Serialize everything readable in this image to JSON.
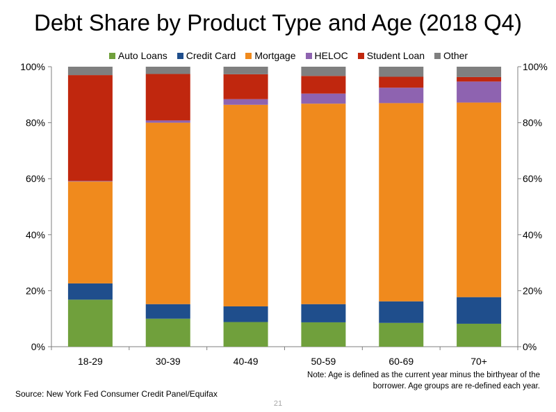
{
  "page_number": "21",
  "source": "Source: New York Fed Consumer Credit Panel/Equifax",
  "note": "Note: Age is defined as the current year minus the birthyear of the borrower. Age groups are re-defined each year.",
  "chart_data": {
    "type": "bar",
    "stacked": true,
    "title": "Debt Share by Product Type and Age (2018 Q4)",
    "xlabel": "",
    "ylabel": "",
    "ylim": [
      0,
      100
    ],
    "y_ticks": [
      "0%",
      "20%",
      "40%",
      "60%",
      "80%",
      "100%"
    ],
    "grid": false,
    "legend_position": "top",
    "categories": [
      "18-29",
      "30-39",
      "40-49",
      "50-59",
      "60-69",
      "70+"
    ],
    "series": [
      {
        "name": "Auto Loans",
        "color": "#70a03c",
        "values": [
          16.8,
          10.0,
          8.8,
          8.7,
          8.5,
          8.2
        ]
      },
      {
        "name": "Credit Card",
        "color": "#1f4e8c",
        "values": [
          5.8,
          5.2,
          5.6,
          6.5,
          7.7,
          9.5
        ]
      },
      {
        "name": "Mortgage",
        "color": "#f08a1d",
        "values": [
          36.4,
          64.8,
          72.0,
          71.6,
          70.8,
          69.5
        ]
      },
      {
        "name": "HELOC",
        "color": "#8e63b0",
        "values": [
          0.2,
          0.8,
          2.0,
          3.6,
          5.5,
          7.5
        ]
      },
      {
        "name": "Student Loan",
        "color": "#c0270e",
        "values": [
          37.8,
          16.6,
          8.9,
          6.3,
          3.9,
          1.6
        ]
      },
      {
        "name": "Other",
        "color": "#7f7f7f",
        "values": [
          3.0,
          2.6,
          2.7,
          3.3,
          3.6,
          3.7
        ]
      }
    ]
  }
}
